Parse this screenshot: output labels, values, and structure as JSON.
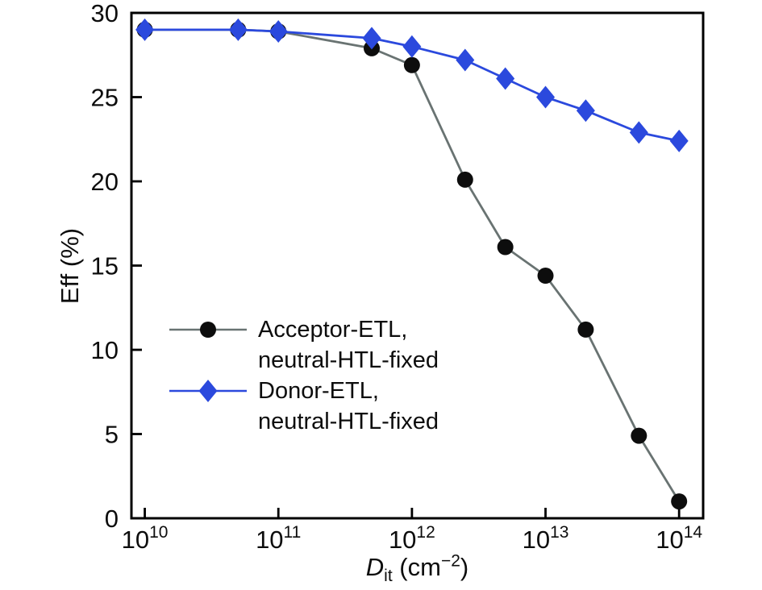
{
  "figure": {
    "background": "#ffffff",
    "ylabel": "Eff (%)",
    "xlabel": {
      "variable": "D",
      "subscript": "it",
      "unit_prefix": " (cm",
      "unit_exponent": "−2",
      "unit_suffix": ")"
    }
  },
  "legend": {
    "position": "inside-left-middle",
    "entries": [
      {
        "line1": "Acceptor-ETL,",
        "line2": "neutral-HTL-fixed",
        "marker": "circle",
        "marker_color": "#0d0d0d",
        "line_color": "#697372"
      },
      {
        "line1": "Donor-ETL,",
        "line2": "neutral-HTL-fixed",
        "marker": "diamond",
        "marker_color": "#2b49dd",
        "line_color": "#2b49dd"
      }
    ]
  },
  "chart_data": {
    "type": "line",
    "xscale": "log",
    "title": "",
    "xlabel": "D_it (cm−2)",
    "ylabel": "Eff (%)",
    "ylim": [
      0,
      30
    ],
    "xlim_log": [
      9.9,
      14.18
    ],
    "grid": false,
    "x": [
      10000000000.0,
      50000000000.0,
      100000000000.0,
      500000000000.0,
      1000000000000.0,
      2500000000000.0,
      5000000000000.0,
      10000000000000.0,
      20000000000000.0,
      50000000000000.0,
      100000000000000.0
    ],
    "x_ticks": [
      {
        "log": 10,
        "base": "10",
        "exp": "10"
      },
      {
        "log": 11,
        "base": "10",
        "exp": "11"
      },
      {
        "log": 12,
        "base": "10",
        "exp": "12"
      },
      {
        "log": 13,
        "base": "10",
        "exp": "13"
      },
      {
        "log": 14,
        "base": "10",
        "exp": "14"
      }
    ],
    "y_ticks": [
      0,
      5,
      10,
      15,
      20,
      25,
      30
    ],
    "series": [
      {
        "name": "Acceptor-ETL, neutral-HTL-fixed",
        "marker": "circle",
        "marker_color": "#0d0d0d",
        "line_color": "#697372",
        "values": [
          29.0,
          29.0,
          28.9,
          27.9,
          26.9,
          20.1,
          16.1,
          14.4,
          11.2,
          4.9,
          1.0
        ]
      },
      {
        "name": "Donor-ETL, neutral-HTL-fixed",
        "marker": "diamond",
        "marker_color": "#2b49dd",
        "line_color": "#2b49dd",
        "values": [
          29.0,
          29.0,
          28.9,
          28.5,
          28.0,
          27.2,
          26.1,
          25.0,
          24.2,
          22.9,
          22.4
        ]
      }
    ]
  }
}
